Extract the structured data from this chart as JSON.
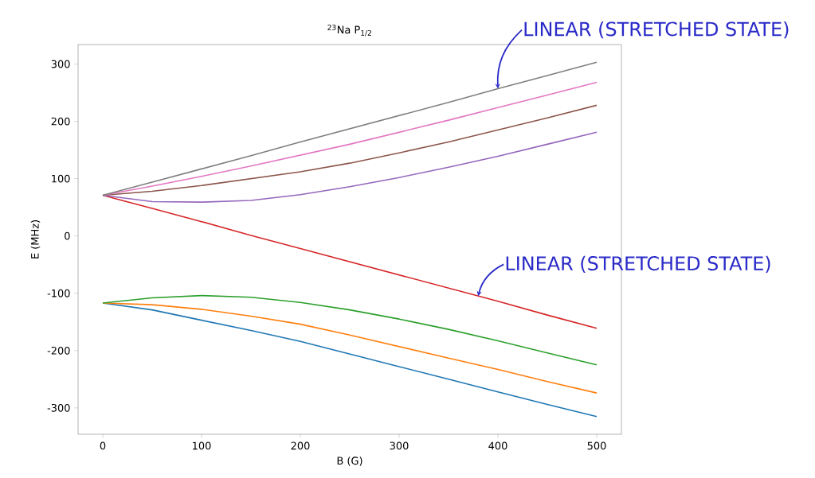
{
  "chart_data": {
    "type": "line",
    "title": "$^{23}$Na P$_{1/2}$",
    "xlabel": "B (G)",
    "ylabel": "E (MHz)",
    "x": [
      0,
      50,
      100,
      150,
      200,
      250,
      300,
      350,
      400,
      450,
      500
    ],
    "series": [
      {
        "color": "#1f77b4",
        "values": [
          -117,
          -129,
          -147,
          -165,
          -184,
          -206,
          -228,
          -250,
          -272,
          -294,
          -315
        ]
      },
      {
        "color": "#ff7f0e",
        "values": [
          -117,
          -120,
          -128,
          -140,
          -154,
          -173,
          -193,
          -213,
          -233,
          -254,
          -274
        ]
      },
      {
        "color": "#2ca02c",
        "values": [
          -117,
          -108,
          -104,
          -107,
          -116,
          -129,
          -145,
          -163,
          -183,
          -204,
          -225
        ]
      },
      {
        "color": "#d62728",
        "values": [
          71,
          48,
          25,
          1,
          -22,
          -45,
          -68,
          -91,
          -114,
          -138,
          -161
        ]
      },
      {
        "color": "#9467bd",
        "values": [
          71,
          60,
          59,
          62,
          72,
          86,
          102,
          120,
          139,
          160,
          181
        ]
      },
      {
        "color": "#8c564b",
        "values": [
          71,
          78,
          88,
          100,
          112,
          127,
          145,
          164,
          185,
          206,
          228
        ]
      },
      {
        "color": "#e377c2",
        "values": [
          71,
          87,
          104,
          122,
          141,
          160,
          181,
          202,
          224,
          246,
          268
        ]
      },
      {
        "color": "#7f7f7f",
        "values": [
          71,
          94,
          117,
          140,
          164,
          187,
          210,
          233,
          257,
          280,
          303
        ]
      }
    ],
    "xlim": [
      -25,
      525
    ],
    "ylim": [
      -346,
      334
    ],
    "xticks": [
      0,
      100,
      200,
      300,
      400,
      500
    ],
    "yticks": [
      -300,
      -200,
      -100,
      0,
      100,
      200,
      300
    ],
    "grid": false,
    "annotations": [
      {
        "text": "LINEAR (STRETCHED STATE)",
        "x": 400,
        "y": 257
      },
      {
        "text": "LINEAR (STRETCHED STATE)",
        "x": 380,
        "y": -105
      }
    ]
  }
}
